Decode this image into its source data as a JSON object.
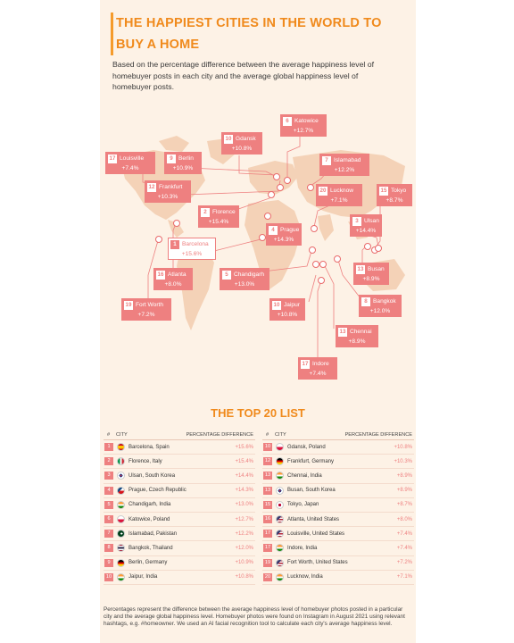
{
  "title": "THE HAPPIEST CITIES IN THE WORLD TO BUY A HOME",
  "subtitle": "Based on the percentage difference between the average happiness level of homebuyer posts in each city and the average global happiness level of homebuyer posts.",
  "map_labels": [
    {
      "rank": "6",
      "city": "Katowice",
      "value": "+12.7%"
    },
    {
      "rank": "10",
      "city": "Gdansk",
      "value": "+10.8%"
    },
    {
      "rank": "17",
      "city": "Louisville",
      "value": "+7.4%"
    },
    {
      "rank": "9",
      "city": "Berlin",
      "value": "+10.9%"
    },
    {
      "rank": "7",
      "city": "Islamabad",
      "value": "+12.2%"
    },
    {
      "rank": "12",
      "city": "Frankfurt",
      "value": "+10.3%"
    },
    {
      "rank": "20",
      "city": "Lucknow",
      "value": "+7.1%"
    },
    {
      "rank": "15",
      "city": "Tokyo",
      "value": "+8.7%"
    },
    {
      "rank": "2",
      "city": "Florence",
      "value": "+15.4%"
    },
    {
      "rank": "3",
      "city": "Ulsan",
      "value": "+14.4%"
    },
    {
      "rank": "4",
      "city": "Prague",
      "value": "+14.3%"
    },
    {
      "rank": "1",
      "city": "Barcelona",
      "value": "+15.6%"
    },
    {
      "rank": "16",
      "city": "Atlanta",
      "value": "+8.0%"
    },
    {
      "rank": "5",
      "city": "Chandigarh",
      "value": "+13.0%"
    },
    {
      "rank": "13",
      "city": "Busan",
      "value": "+8.9%"
    },
    {
      "rank": "19",
      "city": "Fort Worth",
      "value": "+7.2%"
    },
    {
      "rank": "10",
      "city": "Jaipur",
      "value": "+10.8%"
    },
    {
      "rank": "8",
      "city": "Bangkok",
      "value": "+12.0%"
    },
    {
      "rank": "13",
      "city": "Chennai",
      "value": "+8.9%"
    },
    {
      "rank": "17",
      "city": "Indore",
      "value": "+7.4%"
    }
  ],
  "list_title": "THE TOP 20 LIST",
  "table_headers": {
    "num": "#",
    "city": "CITY",
    "pct": "PERCENTAGE DIFFERENCE"
  },
  "left_rows": [
    {
      "rank": "1",
      "city": "Barcelona, Spain",
      "value": "+15.6%",
      "flag": "spain"
    },
    {
      "rank": "2",
      "city": "Florence, Italy",
      "value": "+15.4%",
      "flag": "italy"
    },
    {
      "rank": "3",
      "city": "Ulsan, South Korea",
      "value": "+14.4%",
      "flag": "korea"
    },
    {
      "rank": "4",
      "city": "Prague, Czech Republic",
      "value": "+14.3%",
      "flag": "czech"
    },
    {
      "rank": "5",
      "city": "Chandigarh, India",
      "value": "+13.0%",
      "flag": "india"
    },
    {
      "rank": "6",
      "city": "Katowice, Poland",
      "value": "+12.7%",
      "flag": "poland"
    },
    {
      "rank": "7",
      "city": "Islamabad, Pakistan",
      "value": "+12.2%",
      "flag": "pakistan"
    },
    {
      "rank": "8",
      "city": "Bangkok, Thailand",
      "value": "+12.0%",
      "flag": "thailand"
    },
    {
      "rank": "9",
      "city": "Berlin, Germany",
      "value": "+10.9%",
      "flag": "germany"
    },
    {
      "rank": "10",
      "city": "Jaipur, India",
      "value": "+10.8%",
      "flag": "india"
    }
  ],
  "right_rows": [
    {
      "rank": "10",
      "city": "Gdansk, Poland",
      "value": "+10.8%",
      "flag": "poland"
    },
    {
      "rank": "12",
      "city": "Frankfurt, Germany",
      "value": "+10.3%",
      "flag": "germany"
    },
    {
      "rank": "13",
      "city": "Chennai, India",
      "value": "+8.9%",
      "flag": "india"
    },
    {
      "rank": "13",
      "city": "Busan, South Korea",
      "value": "+8.9%",
      "flag": "korea"
    },
    {
      "rank": "15",
      "city": "Tokyo, Japan",
      "value": "+8.7%",
      "flag": "japan"
    },
    {
      "rank": "16",
      "city": "Atlanta,  United States",
      "value": "+8.0%",
      "flag": "usa"
    },
    {
      "rank": "17",
      "city": "Louisville, United States",
      "value": "+7.4%",
      "flag": "usa"
    },
    {
      "rank": "17",
      "city": "Indore, India",
      "value": "+7.4%",
      "flag": "india"
    },
    {
      "rank": "19",
      "city": "Fort Worth, United States",
      "value": "+7.2%",
      "flag": "usa"
    },
    {
      "rank": "20",
      "city": "Lucknow, India",
      "value": "+7.1%",
      "flag": "india"
    }
  ],
  "footnote": "Percentages represent the difference between the average happiness level of homebuyer photos posted in a particular city and the average global happiness level. Homebuyer photos were found on Instagram in August 2021 using relevant hashtags, e.g. #homeowner. We used an AI facial recognition tool to calculate each city's average happiness level.",
  "colors": {
    "accent": "#f08a1c",
    "label": "#ee8080",
    "background": "#fdf2e6",
    "land": "#f4d2b7"
  }
}
